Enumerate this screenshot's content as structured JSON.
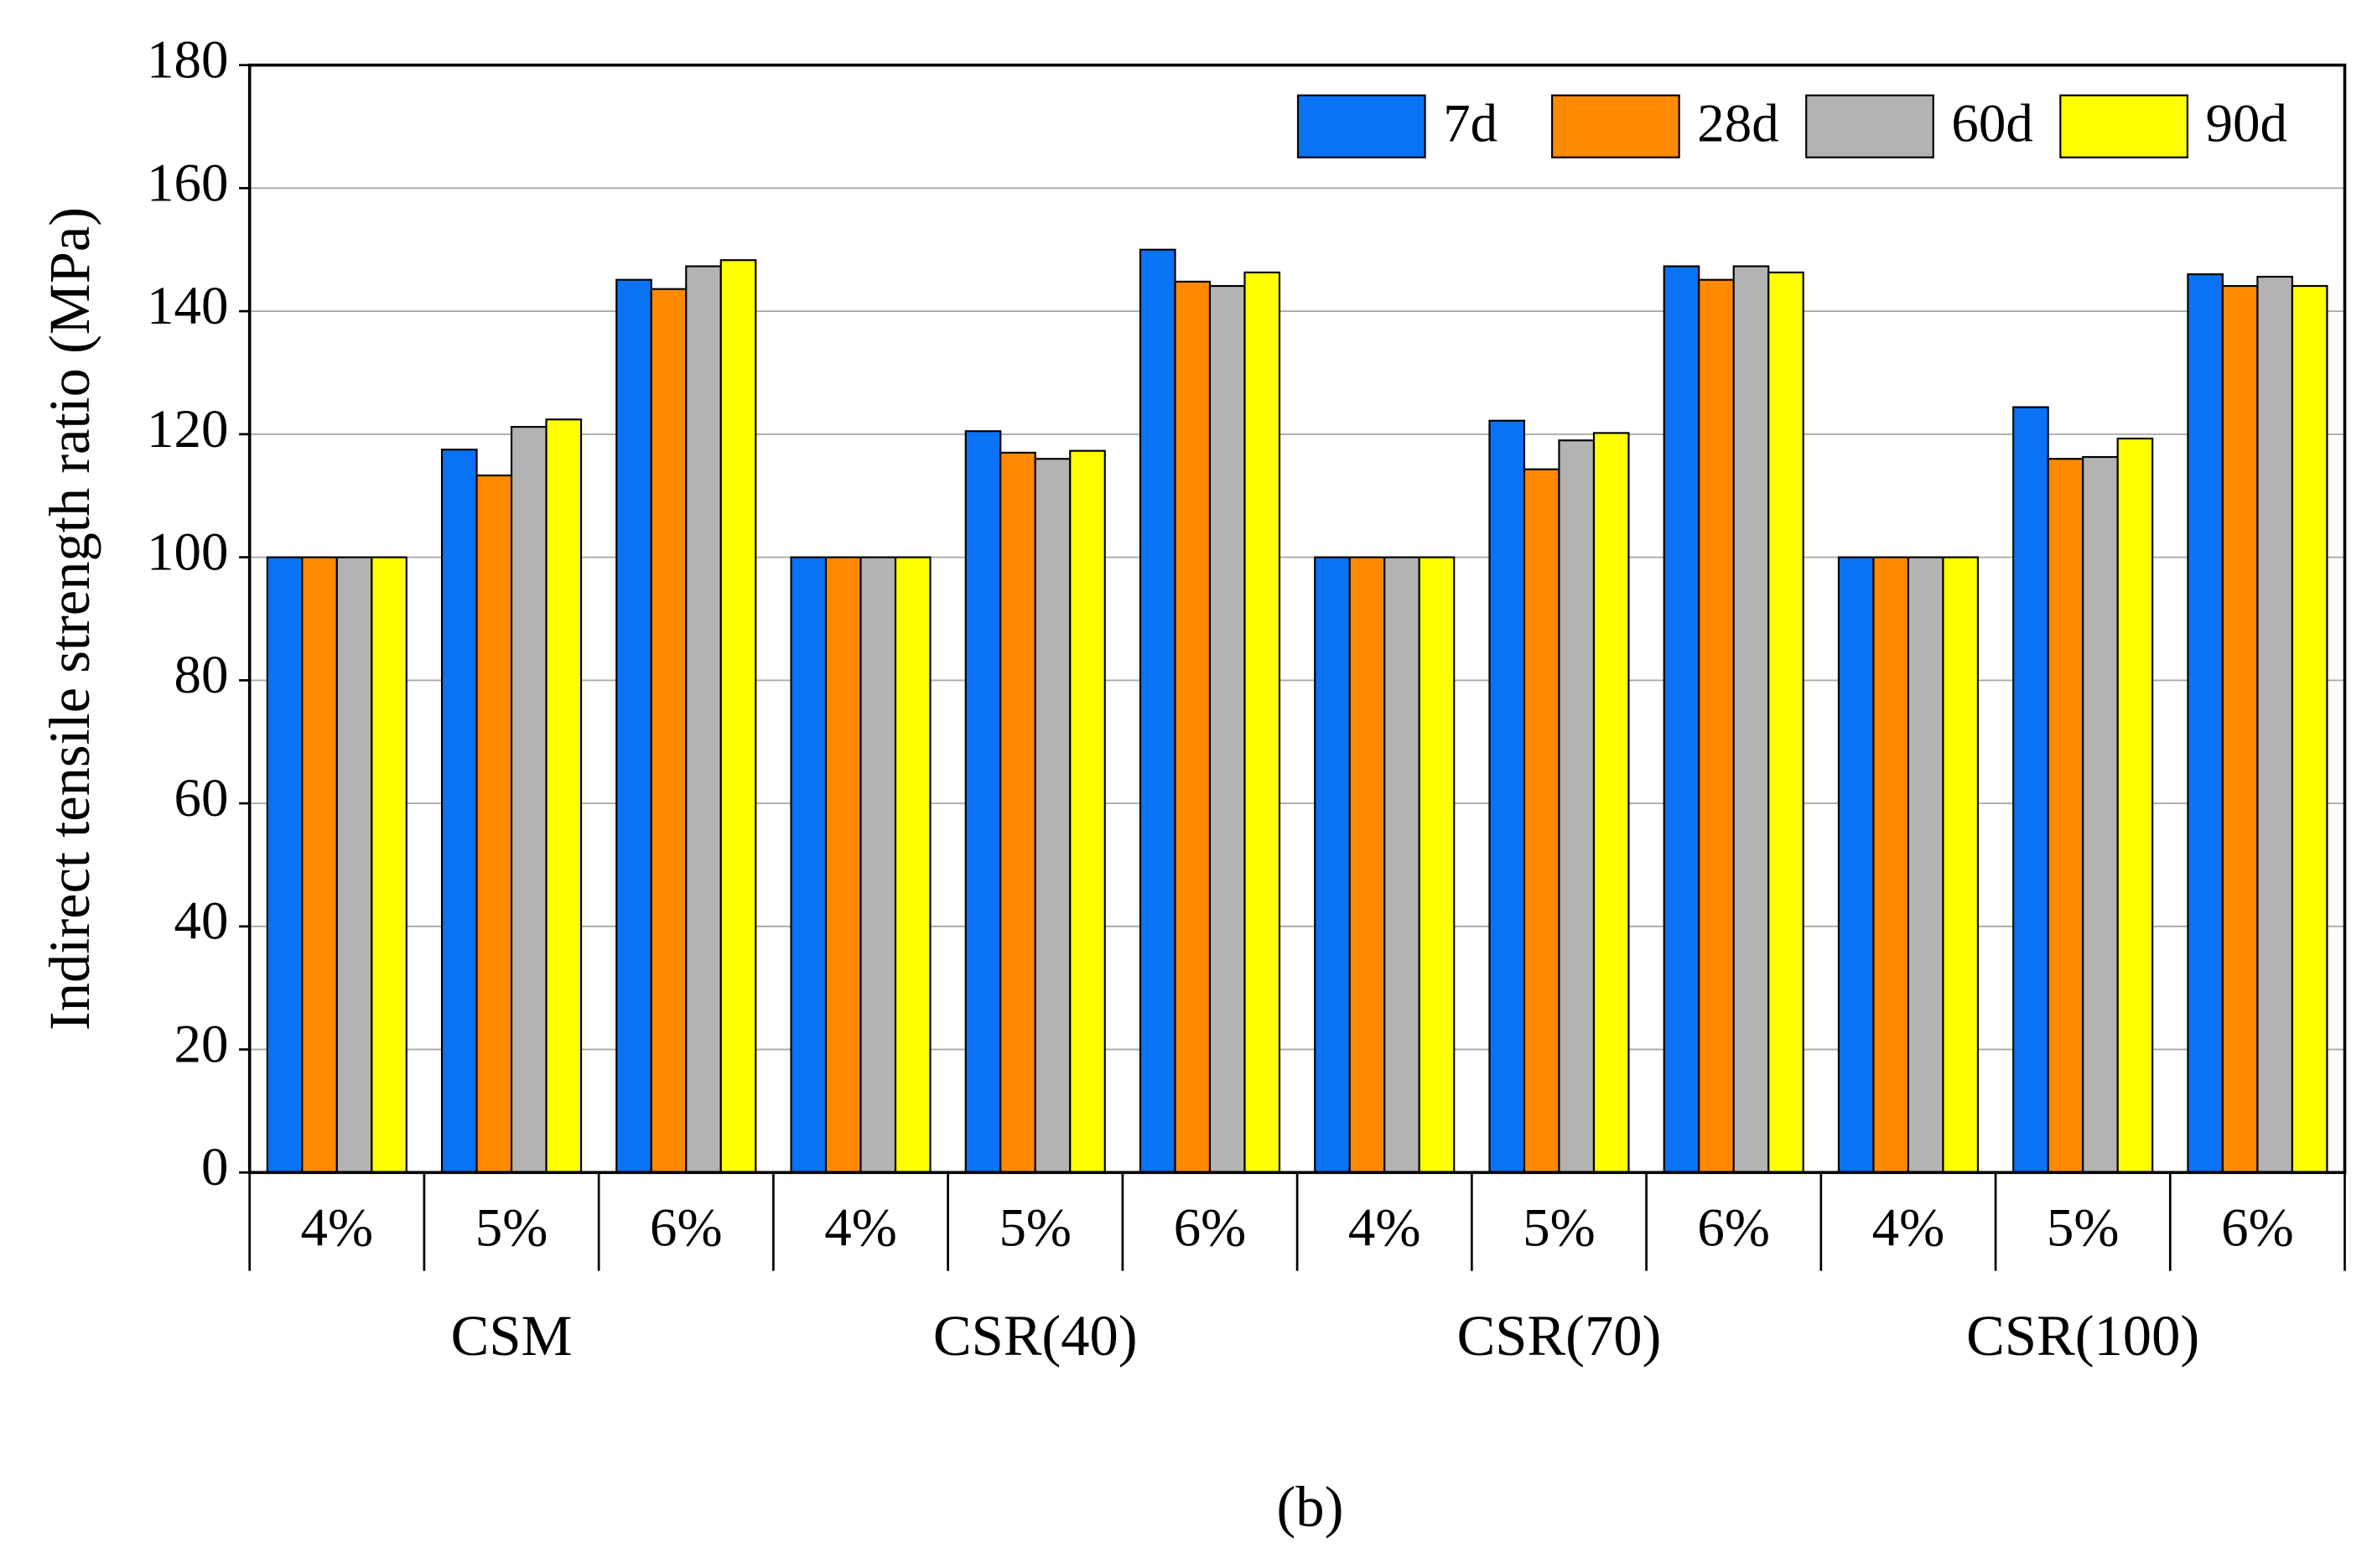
{
  "chart_data": {
    "type": "bar",
    "ylabel": "Indirect tensile strength ratio (MPa)",
    "caption": "(b)",
    "categories": [
      "4%",
      "5%",
      "6%",
      "4%",
      "5%",
      "6%",
      "4%",
      "5%",
      "6%",
      "4%",
      "5%",
      "6%"
    ],
    "groups": [
      "CSM",
      "CSR(40)",
      "CSR(70)",
      "CSR(100)"
    ],
    "series": [
      {
        "name": "7d",
        "color": "#0a72f5",
        "values": [
          100,
          117.5,
          145.1,
          100,
          120.5,
          150,
          100,
          122.2,
          147.3,
          100,
          124.4,
          146
        ]
      },
      {
        "name": "28d",
        "color": "#ff8a00",
        "values": [
          100,
          113.3,
          143.6,
          100,
          117,
          144.8,
          100,
          114.3,
          145.1,
          100,
          116,
          144.1
        ]
      },
      {
        "name": "60d",
        "color": "#b3b3b3",
        "values": [
          100,
          121.2,
          147.3,
          100,
          116,
          144.1,
          100,
          119,
          147.3,
          100,
          116.3,
          145.6
        ]
      },
      {
        "name": "90d",
        "color": "#ffff00",
        "values": [
          100,
          122.4,
          148.3,
          100,
          117.3,
          146.3,
          100,
          120.2,
          146.3,
          100,
          119.3,
          144.1
        ]
      }
    ],
    "ylim": [
      0,
      180
    ],
    "yticks": [
      0,
      20,
      40,
      60,
      80,
      100,
      120,
      140,
      160,
      180
    ],
    "grid": true,
    "legend": "top-right"
  }
}
